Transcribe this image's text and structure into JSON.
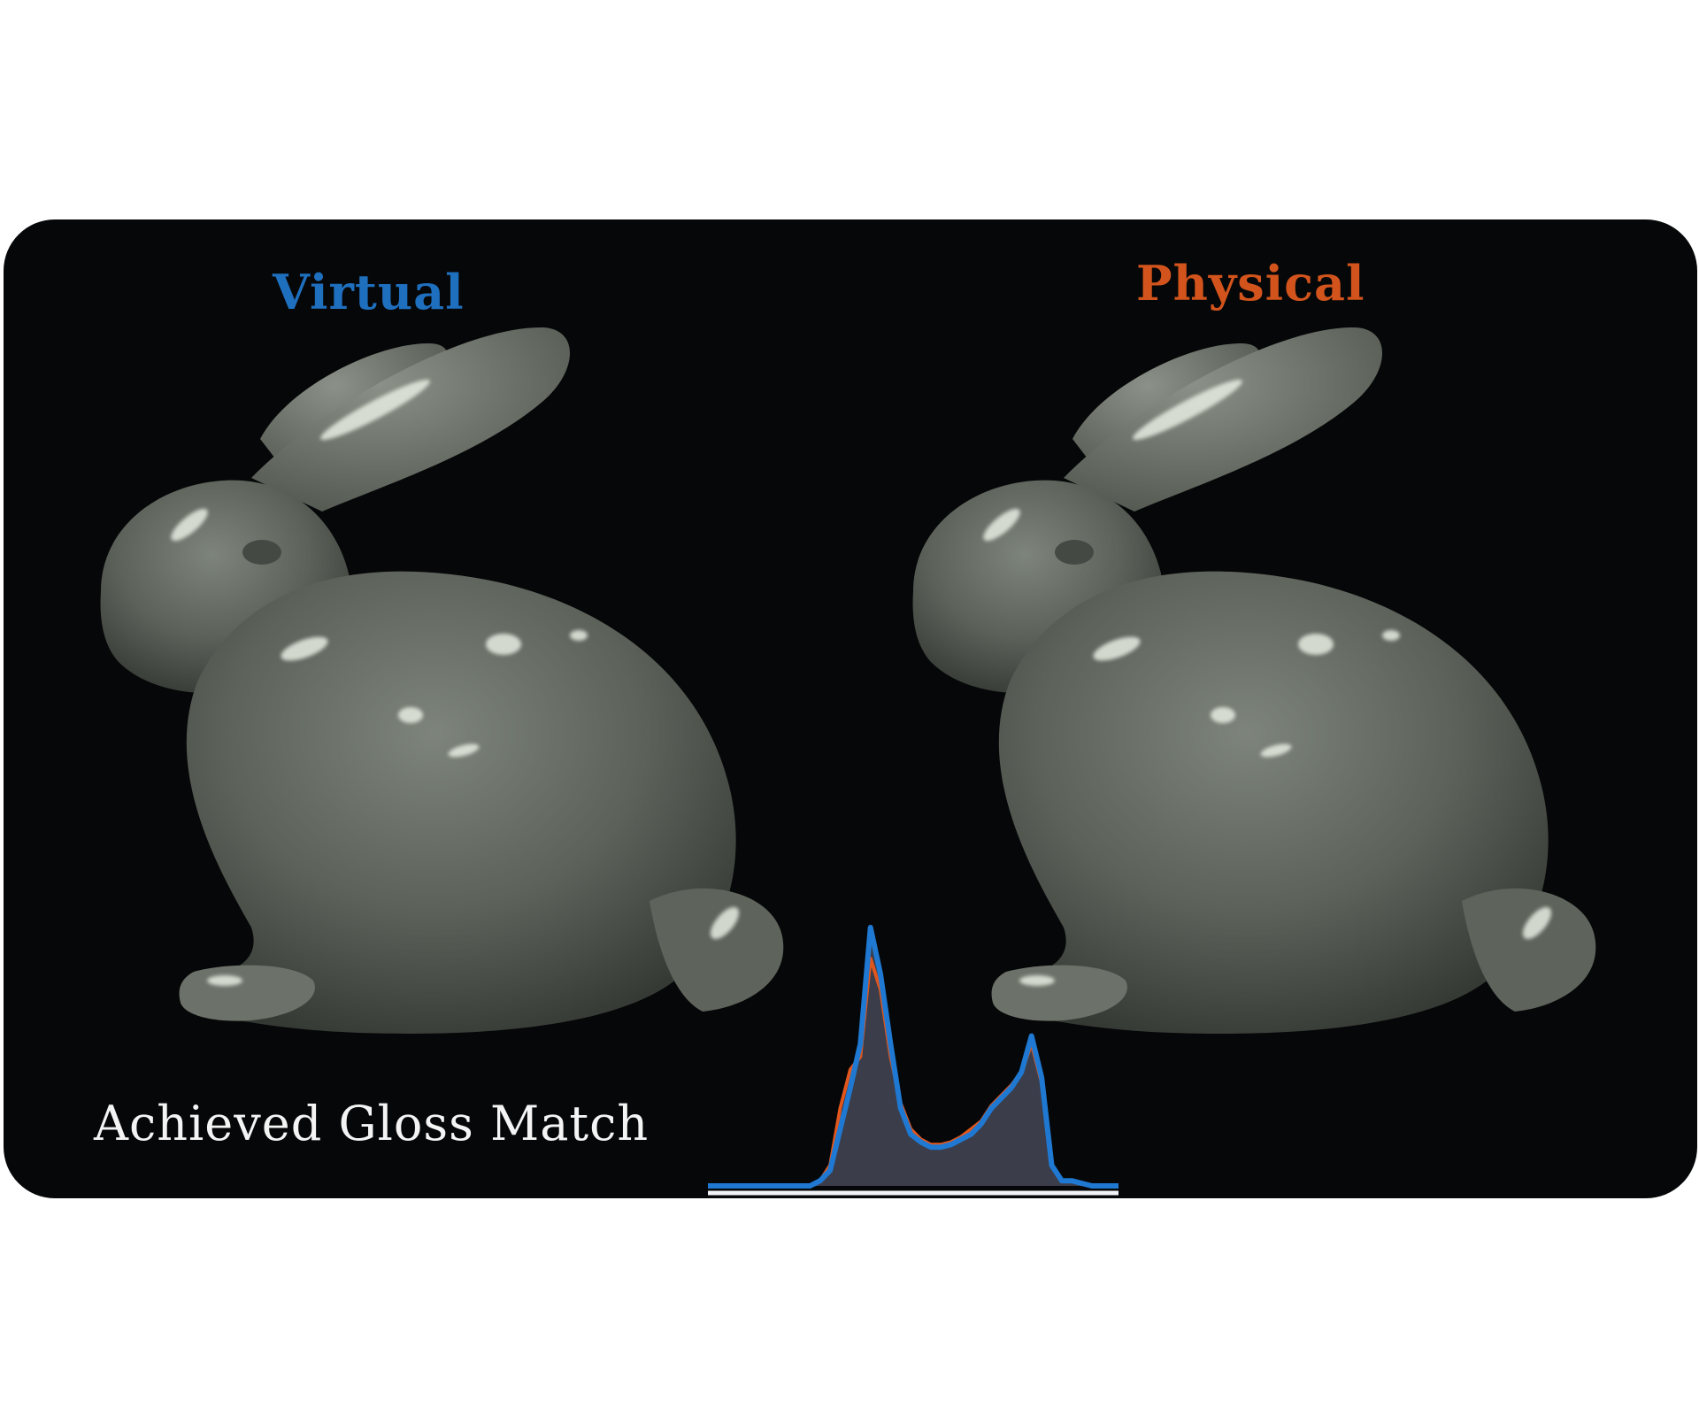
{
  "panel": {
    "background": "#060708",
    "left_label": "Virtual",
    "right_label": "Physical",
    "left_color": "#1f6fbf",
    "right_color": "#d2541c",
    "caption": "Achieved Gloss Match",
    "caption_color": "#f4f4f4"
  },
  "images": [
    {
      "subject": "stanford-bunny",
      "material": "glossy grey-green",
      "side": "left"
    },
    {
      "subject": "stanford-bunny",
      "material": "glossy grey-green",
      "side": "right"
    }
  ],
  "histogram": {
    "series_colors": {
      "virtual": "#1f78d1",
      "physical": "#e0561c",
      "fill": "#3b3d4a",
      "baseline": "#f1f3f6"
    },
    "virtual_curve": [
      0,
      0,
      0.02,
      0.06,
      0.22,
      0.38,
      0.55,
      1.0,
      0.82,
      0.55,
      0.3,
      0.2,
      0.17,
      0.15,
      0.15,
      0.16,
      0.18,
      0.2,
      0.24,
      0.3,
      0.34,
      0.38,
      0.44,
      0.58,
      0.42,
      0.08,
      0.02,
      0.02,
      0.01,
      0
    ],
    "physical_curve": [
      0,
      0,
      0.02,
      0.08,
      0.3,
      0.45,
      0.5,
      0.88,
      0.76,
      0.5,
      0.32,
      0.22,
      0.18,
      0.16,
      0.16,
      0.17,
      0.19,
      0.22,
      0.25,
      0.31,
      0.35,
      0.39,
      0.44,
      0.55,
      0.4,
      0.08,
      0.02,
      0.02,
      0.01,
      0
    ]
  }
}
